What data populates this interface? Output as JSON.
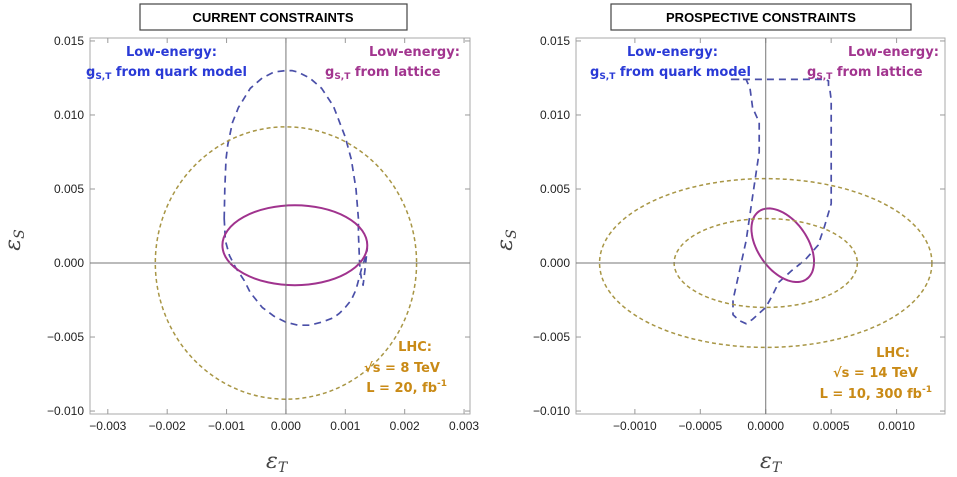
{
  "colors": {
    "quark": "#4a4fa8",
    "lattice": "#a0338e",
    "lhc": "#a89645",
    "frame": "#aaaaaa",
    "axis": "#777777",
    "label_blue": "#2a3ad6",
    "label_purple": "#a2358f",
    "label_gold": "#c98a16"
  },
  "chart_data": [
    {
      "type": "line",
      "title": "CURRENT CONSTRAINTS",
      "xlabel": "εT",
      "ylabel": "εS",
      "xlim": [
        -0.0033,
        0.0031
      ],
      "ylim": [
        -0.0102,
        0.0152
      ],
      "xticks": [
        -0.003,
        -0.002,
        -0.001,
        0.0,
        0.001,
        0.002,
        0.003
      ],
      "xtick_labels": [
        "−0.003",
        "−0.002",
        "−0.001",
        "0.000",
        "0.001",
        "0.002",
        "0.003"
      ],
      "yticks": [
        -0.01,
        -0.005,
        0.0,
        0.005,
        0.01,
        0.015
      ],
      "ytick_labels": [
        "−0.010",
        "−0.005",
        "0.000",
        "0.005",
        "0.010",
        "0.015"
      ],
      "annotations": {
        "quark_l1": "Low-energy:",
        "quark_l2": "g",
        "quark_l2_sub": "S,T",
        "quark_l2_rest": " from quark model",
        "lattice_l1": "Low-energy:",
        "lattice_l2": "g",
        "lattice_l2_sub": "S,T",
        "lattice_l2_rest": " from lattice",
        "lhc_l1": "LHC:",
        "lhc_l2": "√s = 8 TeV",
        "lhc_l3": "L = 20, fb",
        "lhc_l3_sup": "-1"
      },
      "series": [
        {
          "id": "quark",
          "style": "dashed",
          "x": [
            -0.00104,
            -0.00103,
            -0.00101,
            -0.00098,
            -0.0009,
            -0.0008,
            -0.0006,
            -0.0004,
            -0.0002,
            0.0,
            0.0001,
            0.0002,
            0.0004,
            0.0006,
            0.0008,
            0.001,
            0.0011,
            0.00118,
            0.00122,
            0.00122,
            0.00123,
            0.00124,
            0.00125,
            0.00127,
            0.0013,
            0.00133,
            0.00137,
            0.00135,
            0.00128,
            0.00118,
            0.0011,
            0.001,
            0.0009,
            0.0008,
            0.0006,
            0.0004,
            0.0002,
            0.0001,
            0.0,
            -0.0002,
            -0.0004,
            -0.0006,
            -0.0007,
            -0.00085,
            -0.00095,
            -0.00102,
            -0.00104
          ],
          "y": [
            0.003,
            0.005,
            0.007,
            0.008,
            0.0095,
            0.0105,
            0.0118,
            0.0125,
            0.0129,
            0.013,
            0.013,
            0.0129,
            0.0125,
            0.0118,
            0.0106,
            0.0085,
            0.007,
            0.005,
            0.003,
            0.002,
            0.001,
            0.0,
            -0.0005,
            -0.001,
            -0.0015,
            -0.0005,
            0.001,
            0.0005,
            -0.0003,
            -0.0018,
            -0.0025,
            -0.003,
            -0.0034,
            -0.0037,
            -0.004,
            -0.0042,
            -0.0042,
            -0.0041,
            -0.004,
            -0.0036,
            -0.003,
            -0.002,
            -0.0012,
            -0.0003,
            0.0005,
            0.0015,
            0.003
          ]
        },
        {
          "id": "lattice",
          "style": "solid",
          "ellipse": {
            "cx": 0.00015,
            "cy": 0.0012,
            "rx": 0.00122,
            "ry": 0.0027,
            "angle_deg": 0
          }
        },
        {
          "id": "lhc",
          "style": "dotted",
          "ellipse": {
            "cx": 0.0,
            "cy": 0.0,
            "rx": 0.0022,
            "ry": 0.0092,
            "angle_deg": 0
          }
        }
      ]
    },
    {
      "type": "line",
      "title": "PROSPECTIVE CONSTRAINTS",
      "xlabel": "εT",
      "ylabel": "εS",
      "xlim": [
        -0.00145,
        0.00137
      ],
      "ylim": [
        -0.0102,
        0.0152
      ],
      "xticks": [
        -0.001,
        -0.0005,
        0.0,
        0.0005,
        0.001
      ],
      "xtick_labels": [
        "−0.0010",
        "−0.0005",
        "0.0000",
        "0.0005",
        "0.0010"
      ],
      "yticks": [
        -0.01,
        -0.005,
        0.0,
        0.005,
        0.01,
        0.015
      ],
      "ytick_labels": [
        "−0.010",
        "−0.005",
        "0.000",
        "0.005",
        "0.010",
        "0.015"
      ],
      "annotations": {
        "quark_l1": "Low-energy:",
        "quark_l2": "g",
        "quark_l2_sub": "S,T",
        "quark_l2_rest": " from quark model",
        "lattice_l1": "Low-energy:",
        "lattice_l2": "g",
        "lattice_l2_sub": "S,T",
        "lattice_l2_rest": " from lattice",
        "lhc_l1": "LHC:",
        "lhc_l2": "√s = 14 TeV",
        "lhc_l3": "L = 10, 300 fb",
        "lhc_l3_sup": "-1"
      },
      "series": [
        {
          "id": "quark",
          "style": "dashed",
          "x": [
            -0.0001,
            -0.00012,
            -0.00015,
            -0.0002,
            -0.00024,
            -0.00026,
            -0.00028,
            -0.00025,
            -0.00021,
            -0.00015,
            -0.0001,
            -5e-05,
            0.0,
            0.0001,
            0.00015,
            0.0002,
            0.0003,
            0.0004,
            0.00045,
            0.00048,
            0.00048,
            0.00049,
            0.0005,
            0.0005,
            0.00045,
            0.0004,
            0.0003,
            0.0002,
            0.0001,
            5e-05,
            0.0,
            -0.0001,
            -0.00015,
            -0.0002,
            -0.00025,
            -0.00025,
            -0.0002,
            -0.00015,
            -0.0001,
            -5e-05,
            -5e-05,
            -0.0001
          ],
          "y": [
            0.0105,
            0.0118,
            0.0124,
            0.0124,
            0.0124,
            0.0124,
            0.0124,
            0.0124,
            0.0124,
            0.0124,
            0.0124,
            0.0124,
            0.0124,
            0.0124,
            0.0124,
            0.0124,
            0.0124,
            0.0124,
            0.0124,
            0.0123,
            0.012,
            0.0117,
            0.011,
            0.004,
            0.0025,
            0.0012,
            0.0002,
            -0.0005,
            -0.0013,
            -0.0022,
            -0.003,
            -0.0038,
            -0.0041,
            -0.0039,
            -0.0035,
            -0.0025,
            -0.0005,
            0.0015,
            0.0045,
            0.0075,
            0.0095,
            0.0105
          ]
        },
        {
          "id": "lattice",
          "style": "solid",
          "ellipse": {
            "cx": 0.00013,
            "cy": 0.0012,
            "rx": 0.00019,
            "ry": 0.0028,
            "angle_deg": 0,
            "tilt": true
          }
        },
        {
          "id": "lhc",
          "style": "dotted",
          "ellipse": {
            "cx": 0.0,
            "cy": 0.0,
            "rx": 0.00127,
            "ry": 0.0057,
            "angle_deg": 0
          }
        },
        {
          "id": "lhc_inner",
          "style": "dotted",
          "ellipse": {
            "cx": 0.0,
            "cy": 0.0,
            "rx": 0.0007,
            "ry": 0.003,
            "angle_deg": 0
          }
        }
      ]
    }
  ]
}
